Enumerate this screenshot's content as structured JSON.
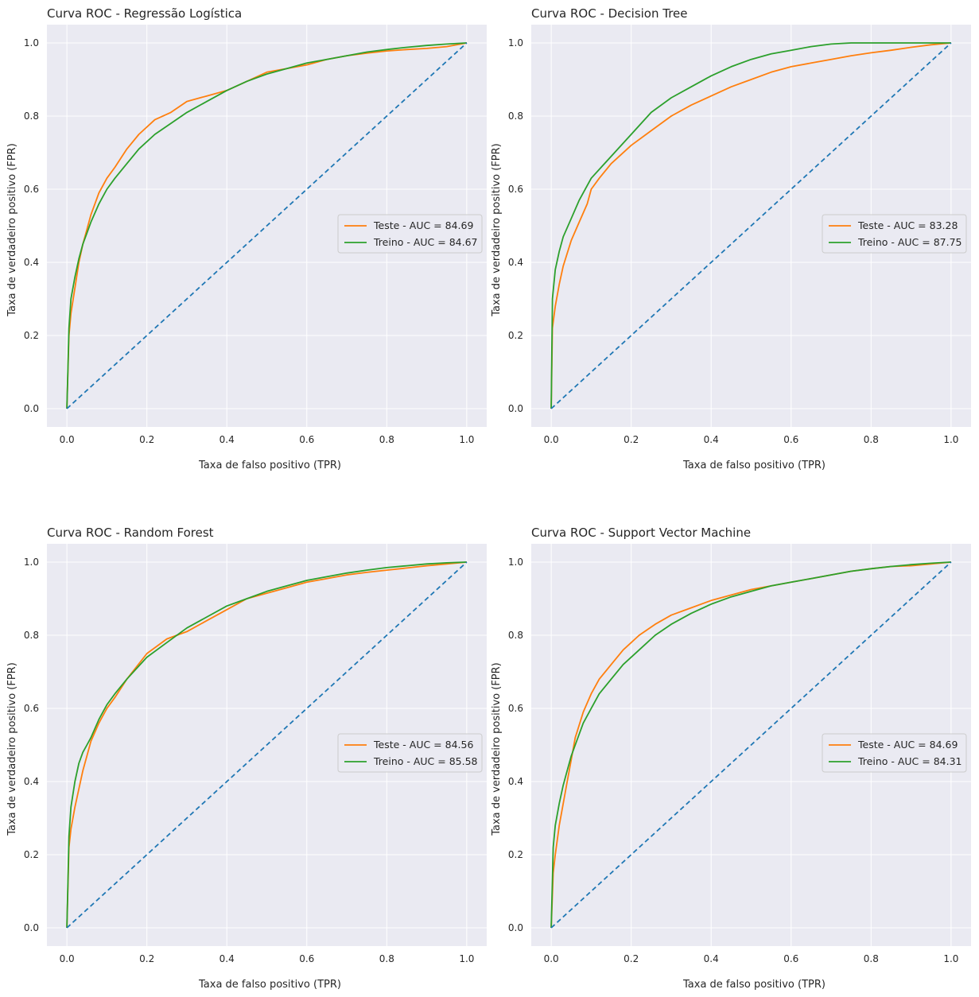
{
  "figure": {
    "colors": {
      "background": "#eaeaf2",
      "grid": "#ffffff",
      "test": "#ff7f0e",
      "train": "#2ca02c",
      "baseline": "#1f77b4",
      "text": "#262626"
    }
  },
  "chart_data": [
    {
      "type": "line",
      "title": "Curva ROC - Regressão Logística",
      "xlabel": "Taxa de falso positivo (TPR)",
      "ylabel": "Taxa de verdadeiro positivo (FPR)",
      "xlim": [
        -0.05,
        1.05
      ],
      "ylim": [
        -0.05,
        1.05
      ],
      "xticks": [
        "0.0",
        "0.2",
        "0.4",
        "0.6",
        "0.8",
        "1.0"
      ],
      "yticks": [
        "0.0",
        "0.2",
        "0.4",
        "0.6",
        "0.8",
        "1.0"
      ],
      "grid": true,
      "legend_position": "center-right",
      "series": [
        {
          "name": "Teste  - AUC = 84.69",
          "role": "test",
          "x": [
            0,
            0.005,
            0.01,
            0.02,
            0.03,
            0.04,
            0.05,
            0.06,
            0.08,
            0.1,
            0.12,
            0.15,
            0.18,
            0.22,
            0.26,
            0.3,
            0.35,
            0.4,
            0.45,
            0.5,
            0.55,
            0.6,
            0.65,
            0.7,
            0.75,
            0.8,
            0.85,
            0.9,
            0.95,
            1.0
          ],
          "y": [
            0,
            0.2,
            0.26,
            0.33,
            0.4,
            0.45,
            0.49,
            0.53,
            0.59,
            0.63,
            0.66,
            0.71,
            0.75,
            0.79,
            0.81,
            0.84,
            0.855,
            0.87,
            0.895,
            0.92,
            0.93,
            0.94,
            0.955,
            0.965,
            0.972,
            0.978,
            0.982,
            0.985,
            0.99,
            1.0
          ]
        },
        {
          "name": "Treino - AUC = 84.67",
          "role": "train",
          "x": [
            0,
            0.005,
            0.01,
            0.02,
            0.03,
            0.04,
            0.05,
            0.06,
            0.08,
            0.1,
            0.12,
            0.15,
            0.18,
            0.22,
            0.26,
            0.3,
            0.35,
            0.4,
            0.45,
            0.5,
            0.55,
            0.6,
            0.65,
            0.7,
            0.75,
            0.8,
            0.85,
            0.9,
            0.95,
            1.0
          ],
          "y": [
            0,
            0.22,
            0.3,
            0.36,
            0.41,
            0.45,
            0.48,
            0.51,
            0.56,
            0.6,
            0.63,
            0.67,
            0.71,
            0.75,
            0.78,
            0.81,
            0.84,
            0.87,
            0.895,
            0.915,
            0.93,
            0.945,
            0.955,
            0.965,
            0.975,
            0.982,
            0.988,
            0.993,
            0.997,
            1.0
          ]
        },
        {
          "name": "baseline",
          "role": "baseline",
          "x": [
            0,
            1
          ],
          "y": [
            0,
            1
          ]
        }
      ]
    },
    {
      "type": "line",
      "title": "Curva ROC - Decision Tree",
      "xlabel": "Taxa de falso positivo (TPR)",
      "ylabel": "Taxa de verdadeiro positivo (FPR)",
      "xlim": [
        -0.05,
        1.05
      ],
      "ylim": [
        -0.05,
        1.05
      ],
      "xticks": [
        "0.0",
        "0.2",
        "0.4",
        "0.6",
        "0.8",
        "1.0"
      ],
      "yticks": [
        "0.0",
        "0.2",
        "0.4",
        "0.6",
        "0.8",
        "1.0"
      ],
      "grid": true,
      "legend_position": "center-right",
      "series": [
        {
          "name": "Teste  - AUC = 83.28",
          "role": "test",
          "x": [
            0,
            0.003,
            0.01,
            0.02,
            0.03,
            0.05,
            0.07,
            0.09,
            0.1,
            0.12,
            0.15,
            0.2,
            0.25,
            0.3,
            0.35,
            0.4,
            0.45,
            0.5,
            0.55,
            0.6,
            0.65,
            0.7,
            0.75,
            0.8,
            0.85,
            0.9,
            0.95,
            1.0
          ],
          "y": [
            0,
            0.22,
            0.28,
            0.34,
            0.39,
            0.46,
            0.51,
            0.56,
            0.6,
            0.63,
            0.67,
            0.72,
            0.76,
            0.8,
            0.83,
            0.855,
            0.88,
            0.9,
            0.92,
            0.935,
            0.945,
            0.955,
            0.965,
            0.973,
            0.98,
            0.988,
            0.995,
            1.0
          ]
        },
        {
          "name": "Treino - AUC = 87.75",
          "role": "train",
          "x": [
            0,
            0.003,
            0.01,
            0.02,
            0.03,
            0.05,
            0.07,
            0.1,
            0.15,
            0.2,
            0.25,
            0.3,
            0.35,
            0.4,
            0.45,
            0.5,
            0.55,
            0.6,
            0.65,
            0.7,
            0.75,
            0.8,
            0.85,
            0.9,
            0.95,
            1.0
          ],
          "y": [
            0,
            0.3,
            0.38,
            0.43,
            0.47,
            0.52,
            0.57,
            0.63,
            0.69,
            0.75,
            0.81,
            0.85,
            0.88,
            0.91,
            0.935,
            0.955,
            0.97,
            0.98,
            0.99,
            0.997,
            1.0,
            1.0,
            1.0,
            1.0,
            1.0,
            1.0
          ]
        },
        {
          "name": "baseline",
          "role": "baseline",
          "x": [
            0,
            1
          ],
          "y": [
            0,
            1
          ]
        }
      ]
    },
    {
      "type": "line",
      "title": "Curva ROC - Random Forest",
      "xlabel": "Taxa de falso positivo (TPR)",
      "ylabel": "Taxa de verdadeiro positivo (FPR)",
      "xlim": [
        -0.05,
        1.05
      ],
      "ylim": [
        -0.05,
        1.05
      ],
      "xticks": [
        "0.0",
        "0.2",
        "0.4",
        "0.6",
        "0.8",
        "1.0"
      ],
      "yticks": [
        "0.0",
        "0.2",
        "0.4",
        "0.6",
        "0.8",
        "1.0"
      ],
      "grid": true,
      "legend_position": "center-right",
      "series": [
        {
          "name": "Teste  - AUC = 84.56",
          "role": "test",
          "x": [
            0,
            0.005,
            0.01,
            0.02,
            0.03,
            0.04,
            0.05,
            0.06,
            0.08,
            0.1,
            0.12,
            0.15,
            0.2,
            0.25,
            0.3,
            0.35,
            0.4,
            0.45,
            0.5,
            0.55,
            0.6,
            0.65,
            0.7,
            0.75,
            0.8,
            0.85,
            0.9,
            0.95,
            1.0
          ],
          "y": [
            0,
            0.22,
            0.27,
            0.33,
            0.38,
            0.43,
            0.47,
            0.51,
            0.56,
            0.6,
            0.63,
            0.68,
            0.75,
            0.79,
            0.81,
            0.84,
            0.87,
            0.9,
            0.915,
            0.93,
            0.945,
            0.955,
            0.965,
            0.972,
            0.978,
            0.984,
            0.99,
            0.995,
            1.0
          ]
        },
        {
          "name": "Treino - AUC = 85.58",
          "role": "train",
          "x": [
            0,
            0.005,
            0.01,
            0.02,
            0.03,
            0.04,
            0.05,
            0.06,
            0.08,
            0.1,
            0.12,
            0.15,
            0.2,
            0.25,
            0.3,
            0.35,
            0.4,
            0.45,
            0.5,
            0.55,
            0.6,
            0.65,
            0.7,
            0.75,
            0.8,
            0.85,
            0.9,
            0.95,
            1.0
          ],
          "y": [
            0,
            0.25,
            0.33,
            0.4,
            0.45,
            0.48,
            0.5,
            0.52,
            0.57,
            0.61,
            0.64,
            0.68,
            0.74,
            0.78,
            0.82,
            0.85,
            0.88,
            0.9,
            0.92,
            0.935,
            0.95,
            0.96,
            0.97,
            0.978,
            0.985,
            0.99,
            0.995,
            0.998,
            1.0
          ]
        },
        {
          "name": "baseline",
          "role": "baseline",
          "x": [
            0,
            1
          ],
          "y": [
            0,
            1
          ]
        }
      ]
    },
    {
      "type": "line",
      "title": "Curva ROC - Support Vector Machine",
      "xlabel": "Taxa de falso positivo (TPR)",
      "ylabel": "Taxa de verdadeiro positivo (FPR)",
      "xlim": [
        -0.05,
        1.05
      ],
      "ylim": [
        -0.05,
        1.05
      ],
      "xticks": [
        "0.0",
        "0.2",
        "0.4",
        "0.6",
        "0.8",
        "1.0"
      ],
      "yticks": [
        "0.0",
        "0.2",
        "0.4",
        "0.6",
        "0.8",
        "1.0"
      ],
      "grid": true,
      "legend_position": "center-right",
      "series": [
        {
          "name": "Teste  - AUC = 84.69",
          "role": "test",
          "x": [
            0,
            0.005,
            0.01,
            0.02,
            0.03,
            0.04,
            0.05,
            0.06,
            0.08,
            0.1,
            0.12,
            0.15,
            0.18,
            0.22,
            0.26,
            0.3,
            0.35,
            0.4,
            0.45,
            0.5,
            0.55,
            0.6,
            0.65,
            0.7,
            0.75,
            0.8,
            0.85,
            0.9,
            0.95,
            1.0
          ],
          "y": [
            0,
            0.15,
            0.2,
            0.28,
            0.34,
            0.4,
            0.46,
            0.52,
            0.59,
            0.64,
            0.68,
            0.72,
            0.76,
            0.8,
            0.83,
            0.855,
            0.875,
            0.895,
            0.91,
            0.925,
            0.935,
            0.945,
            0.955,
            0.965,
            0.975,
            0.982,
            0.988,
            0.99,
            0.995,
            1.0
          ]
        },
        {
          "name": "Treino - AUC = 84.31",
          "role": "train",
          "x": [
            0,
            0.005,
            0.01,
            0.02,
            0.03,
            0.04,
            0.05,
            0.06,
            0.08,
            0.1,
            0.12,
            0.15,
            0.18,
            0.22,
            0.26,
            0.3,
            0.35,
            0.4,
            0.45,
            0.5,
            0.55,
            0.6,
            0.65,
            0.7,
            0.75,
            0.8,
            0.85,
            0.9,
            0.95,
            1.0
          ],
          "y": [
            0,
            0.22,
            0.28,
            0.34,
            0.39,
            0.43,
            0.47,
            0.5,
            0.56,
            0.6,
            0.64,
            0.68,
            0.72,
            0.76,
            0.8,
            0.83,
            0.86,
            0.885,
            0.905,
            0.92,
            0.935,
            0.945,
            0.955,
            0.965,
            0.975,
            0.982,
            0.988,
            0.993,
            0.997,
            1.0
          ]
        },
        {
          "name": "baseline",
          "role": "baseline",
          "x": [
            0,
            1
          ],
          "y": [
            0,
            1
          ]
        }
      ]
    }
  ]
}
